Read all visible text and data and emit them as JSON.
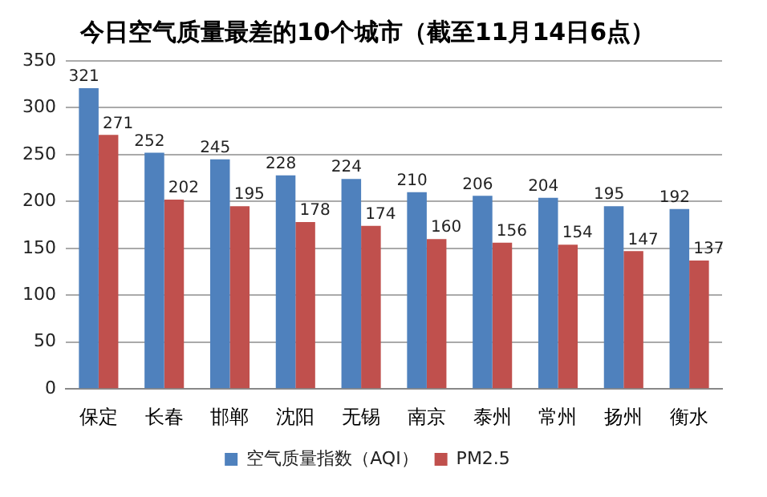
{
  "chart_data": {
    "type": "bar",
    "title": "今日空气质量最差的10个城市（截至11月14日6点）",
    "categories": [
      "保定",
      "长春",
      "邯郸",
      "沈阳",
      "无锡",
      "南京",
      "泰州",
      "常州",
      "扬州",
      "衡水"
    ],
    "series": [
      {
        "name": "空气质量指数（AQI）",
        "color": "#4f81bd",
        "values": [
          321,
          252,
          245,
          228,
          224,
          210,
          206,
          204,
          195,
          192
        ]
      },
      {
        "name": "PM2.5",
        "color": "#c0504d",
        "values": [
          271,
          202,
          195,
          178,
          174,
          160,
          156,
          154,
          147,
          137
        ]
      }
    ],
    "ylim": [
      0,
      350
    ],
    "yticks": [
      0,
      50,
      100,
      150,
      200,
      250,
      300,
      350
    ],
    "grid": "y",
    "legend": "bottom",
    "data_labels": true
  }
}
